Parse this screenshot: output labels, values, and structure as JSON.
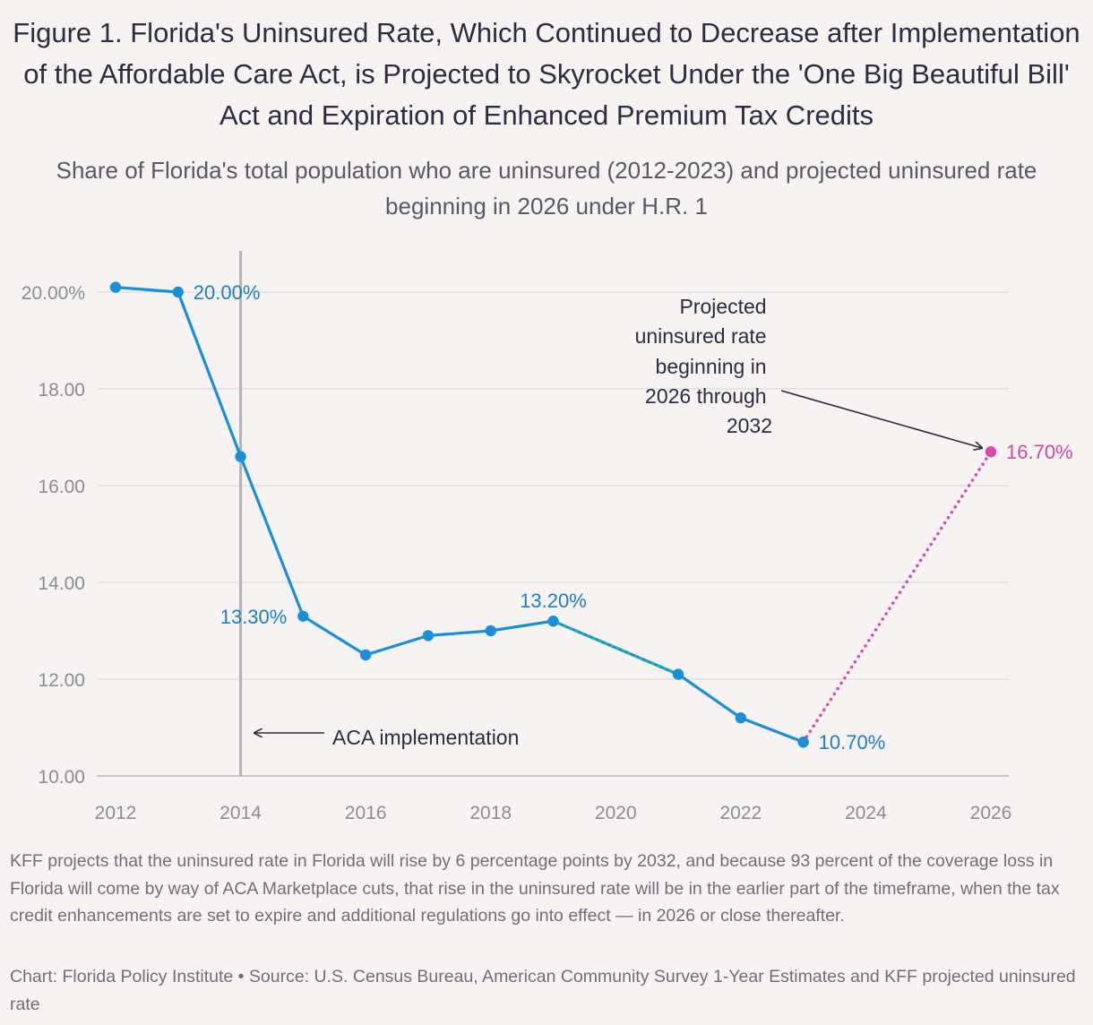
{
  "title": "Figure 1. Florida's Uninsured Rate, Which Continued to Decrease after Implementation of the Affordable Care Act, is Projected to Skyrocket Under the 'One Big Beautiful Bill' Act and Expiration of Enhanced Premium Tax Credits",
  "subtitle": "Share of Florida's total population who are uninsured (2012-2023) and projected uninsured rate beginning in 2026 under H.R. 1",
  "note": "KFF projects that the uninsured rate in Florida will rise by 6 percentage points by 2032, and because 93 percent of the coverage loss in Florida will come by way of ACA Marketplace cuts, that rise in the uninsured rate will be in the earlier part of the timeframe, when the tax credit enhancements are set to expire and additional regulations go into effect — in 2026 or close thereafter.",
  "source": "Chart: Florida Policy Institute  • Source: U.S. Census Bureau, American Community Survey 1-Year Estimates and KFF projected uninsured rate",
  "chart_data": {
    "type": "line",
    "title": "Figure 1. Florida's Uninsured Rate, Which Continued to Decrease after Implementation of the Affordable Care Act, is Projected to Skyrocket Under the 'One Big Beautiful Bill' Act and Expiration of Enhanced Premium Tax Credits",
    "xlim": [
      2012,
      2026
    ],
    "ylim": [
      10,
      20.5
    ],
    "x_ticks": [
      2012,
      2014,
      2016,
      2018,
      2020,
      2022,
      2024,
      2026
    ],
    "y_ticks": [
      10,
      12,
      14,
      16,
      18,
      20
    ],
    "y_tick_labels": [
      "10.00",
      "12.00",
      "14.00",
      "16.00",
      "18.00",
      "20.00%"
    ],
    "grid": true,
    "series": [
      {
        "color": "#1a8fd9",
        "style": "solid",
        "points": [
          [
            2012,
            20.1
          ],
          [
            2013,
            20.0
          ],
          [
            2014,
            16.6
          ],
          [
            2015,
            13.3
          ],
          [
            2016,
            12.5
          ],
          [
            2017,
            12.9
          ],
          [
            2018,
            13.0
          ],
          [
            2019,
            13.2
          ],
          [
            2021,
            12.1
          ],
          [
            2022,
            11.2
          ],
          [
            2023,
            10.7
          ]
        ]
      },
      {
        "color": "#2bb59a",
        "style": "dotted",
        "points": [
          [
            2019,
            13.2
          ],
          [
            2021,
            12.1
          ]
        ]
      },
      {
        "color": "#d54aae",
        "style": "dotted",
        "points": [
          [
            2023,
            10.7
          ],
          [
            2026,
            16.7
          ]
        ]
      }
    ],
    "data_labels": [
      {
        "x": 2013,
        "y": 20.0,
        "text": "20.00%",
        "color": "blue",
        "pos": "right"
      },
      {
        "x": 2015,
        "y": 13.3,
        "text": "13.30%",
        "color": "blue",
        "pos": "left"
      },
      {
        "x": 2019,
        "y": 13.2,
        "text": "13.20%",
        "color": "blue",
        "pos": "above"
      },
      {
        "x": 2023,
        "y": 10.7,
        "text": "10.70%",
        "color": "blue",
        "pos": "right"
      },
      {
        "x": 2026,
        "y": 16.7,
        "text": "16.70%",
        "color": "pink",
        "pos": "right"
      }
    ],
    "reference_line": {
      "x": 2014
    },
    "annotations": {
      "aca": "ACA implementation",
      "projected": [
        "Projected",
        "uninsured rate",
        "beginning in",
        "2026 through",
        "2032"
      ]
    }
  }
}
